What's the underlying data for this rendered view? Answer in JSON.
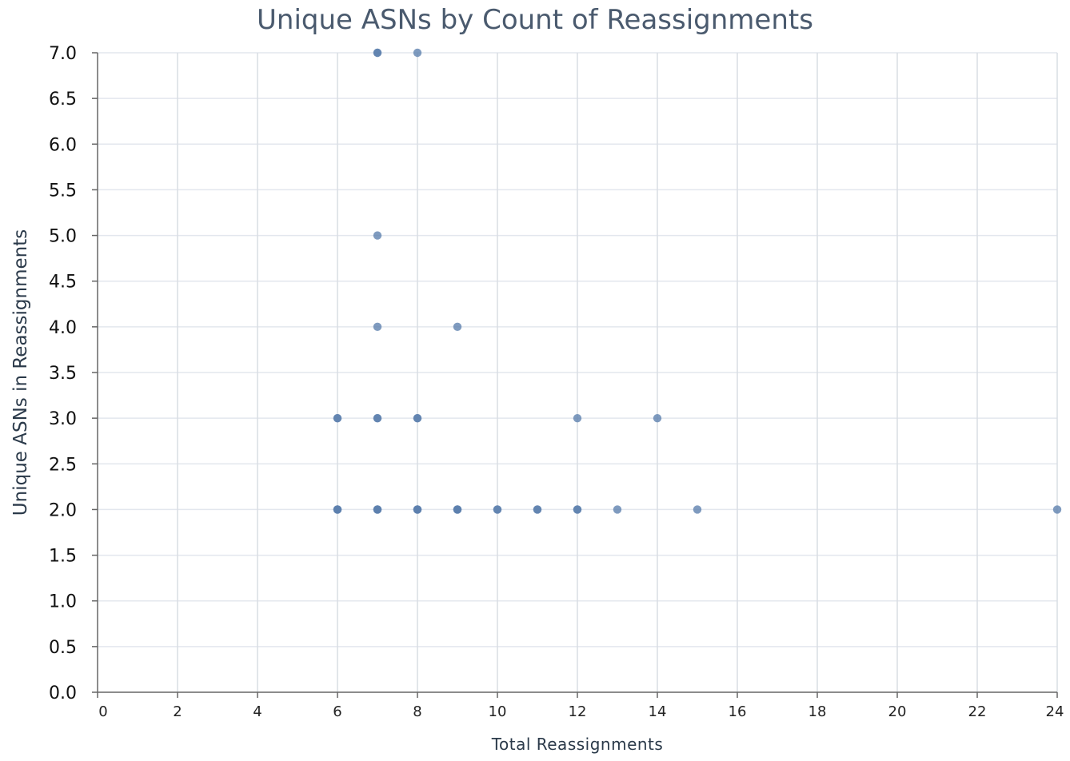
{
  "chart_data": {
    "type": "scatter",
    "title": "Unique ASNs by Count of Reassignments",
    "xlabel": "Total Reassignments",
    "ylabel": "Unique ASNs in Reassignments",
    "xlim": [
      0,
      24
    ],
    "ylim": [
      0,
      7
    ],
    "xticks": [
      "0",
      "2",
      "4",
      "6",
      "8",
      "10",
      "12",
      "14",
      "16",
      "18",
      "20",
      "22",
      "24"
    ],
    "yticks": [
      "0.0",
      "0.5",
      "1.0",
      "1.5",
      "2.0",
      "2.5",
      "3.0",
      "3.5",
      "4.0",
      "4.5",
      "5.0",
      "5.5",
      "6.0",
      "6.5",
      "7.0"
    ],
    "grid": true,
    "color": "#5b7fad",
    "points": [
      {
        "x": 7,
        "y": 7
      },
      {
        "x": 7,
        "y": 7
      },
      {
        "x": 8,
        "y": 7
      },
      {
        "x": 7,
        "y": 5
      },
      {
        "x": 7,
        "y": 4
      },
      {
        "x": 9,
        "y": 4
      },
      {
        "x": 6,
        "y": 3
      },
      {
        "x": 6,
        "y": 3
      },
      {
        "x": 7,
        "y": 3
      },
      {
        "x": 7,
        "y": 3
      },
      {
        "x": 8,
        "y": 3
      },
      {
        "x": 8,
        "y": 3
      },
      {
        "x": 12,
        "y": 3
      },
      {
        "x": 14,
        "y": 3
      },
      {
        "x": 6,
        "y": 2
      },
      {
        "x": 6,
        "y": 2
      },
      {
        "x": 6,
        "y": 2
      },
      {
        "x": 7,
        "y": 2
      },
      {
        "x": 7,
        "y": 2
      },
      {
        "x": 7,
        "y": 2
      },
      {
        "x": 8,
        "y": 2
      },
      {
        "x": 8,
        "y": 2
      },
      {
        "x": 8,
        "y": 2
      },
      {
        "x": 9,
        "y": 2
      },
      {
        "x": 9,
        "y": 2
      },
      {
        "x": 9,
        "y": 2
      },
      {
        "x": 10,
        "y": 2
      },
      {
        "x": 10,
        "y": 2
      },
      {
        "x": 11,
        "y": 2
      },
      {
        "x": 11,
        "y": 2
      },
      {
        "x": 12,
        "y": 2
      },
      {
        "x": 12,
        "y": 2
      },
      {
        "x": 13,
        "y": 2
      },
      {
        "x": 15,
        "y": 2
      },
      {
        "x": 24,
        "y": 2
      }
    ]
  }
}
